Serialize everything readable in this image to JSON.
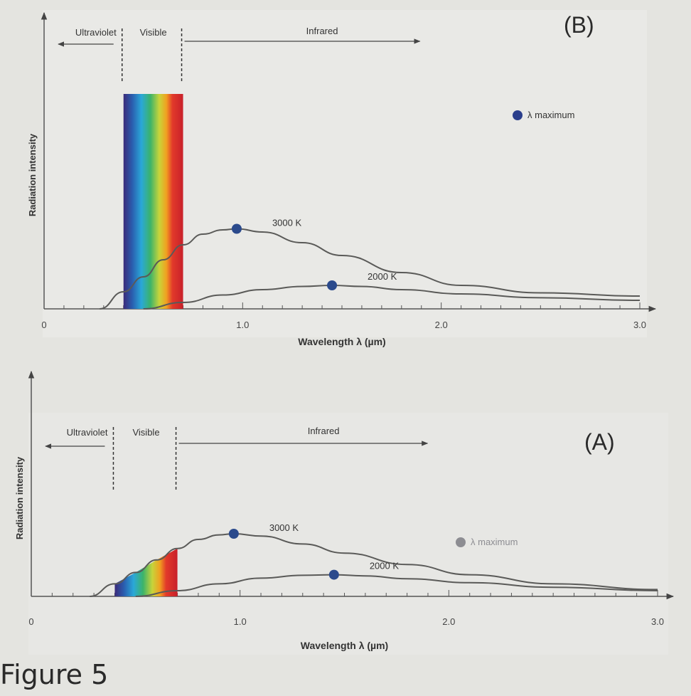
{
  "caption": "Figure 5",
  "chart_data": [
    {
      "type": "line",
      "panel_label": "(B)",
      "xlabel": "Wavelength λ (µm)",
      "ylabel": "Radiation intensity",
      "xlim": [
        0,
        3.0
      ],
      "ylim": [
        0,
        1.0
      ],
      "x_ticks": [
        {
          "value": 0,
          "label": "0"
        },
        {
          "value": 1.0,
          "label": "1.0"
        },
        {
          "value": 2.0,
          "label": "2.0"
        },
        {
          "value": 3.0,
          "label": "3.0"
        }
      ],
      "regions": [
        {
          "name": "Ultraviolet",
          "from": 0,
          "to": 0.4
        },
        {
          "name": "Visible",
          "from": 0.4,
          "to": 0.7
        },
        {
          "name": "Infrared",
          "from": 0.7,
          "to": 3.0
        }
      ],
      "visible_band": {
        "from": 0.4,
        "to": 0.7,
        "style": "full-height bar"
      },
      "legend": {
        "label": "λ maximum",
        "marker_color": "#2b3f8c"
      },
      "series": [
        {
          "name": "3000 K",
          "x": [
            0.28,
            0.4,
            0.5,
            0.6,
            0.7,
            0.8,
            0.9,
            0.97,
            1.1,
            1.3,
            1.5,
            1.8,
            2.1,
            2.5,
            3.0
          ],
          "y": [
            0.0,
            0.08,
            0.15,
            0.23,
            0.3,
            0.35,
            0.37,
            0.375,
            0.36,
            0.31,
            0.25,
            0.17,
            0.11,
            0.075,
            0.06
          ],
          "peak": {
            "x": 0.97,
            "y": 0.375
          }
        },
        {
          "name": "2000 K",
          "x": [
            0.5,
            0.7,
            0.9,
            1.1,
            1.3,
            1.45,
            1.6,
            1.8,
            2.1,
            2.5,
            3.0
          ],
          "y": [
            0.0,
            0.03,
            0.065,
            0.09,
            0.105,
            0.11,
            0.105,
            0.09,
            0.07,
            0.052,
            0.04
          ],
          "peak": {
            "x": 1.45,
            "y": 0.11
          }
        }
      ]
    },
    {
      "type": "line",
      "panel_label": "(A)",
      "xlabel": "Wavelength λ (µm)",
      "ylabel": "Radiation intensity",
      "xlim": [
        0,
        3.0
      ],
      "ylim": [
        0,
        1.0
      ],
      "x_ticks": [
        {
          "value": 0,
          "label": "0"
        },
        {
          "value": 1.0,
          "label": "1.0"
        },
        {
          "value": 2.0,
          "label": "2.0"
        },
        {
          "value": 3.0,
          "label": "3.0"
        }
      ],
      "regions": [
        {
          "name": "Ultraviolet",
          "from": 0,
          "to": 0.4
        },
        {
          "name": "Visible",
          "from": 0.4,
          "to": 0.7
        },
        {
          "name": "Infrared",
          "from": 0.7,
          "to": 3.0
        }
      ],
      "visible_band": {
        "from": 0.4,
        "to": 0.7,
        "style": "under 3000 K curve"
      },
      "legend": {
        "label": "λ maximum",
        "marker_color": "#8d8d92"
      },
      "series": [
        {
          "name": "3000 K",
          "x": [
            0.28,
            0.4,
            0.5,
            0.6,
            0.7,
            0.8,
            0.9,
            0.97,
            1.1,
            1.3,
            1.5,
            1.8,
            2.1,
            2.5,
            3.0
          ],
          "y": [
            0.0,
            0.11,
            0.21,
            0.32,
            0.42,
            0.5,
            0.54,
            0.55,
            0.53,
            0.46,
            0.38,
            0.28,
            0.19,
            0.11,
            0.06
          ],
          "peak": {
            "x": 0.97,
            "y": 0.55
          }
        },
        {
          "name": "2000 K",
          "x": [
            0.5,
            0.7,
            0.9,
            1.1,
            1.3,
            1.45,
            1.6,
            1.8,
            2.1,
            2.5,
            3.0
          ],
          "y": [
            0.0,
            0.05,
            0.11,
            0.16,
            0.185,
            0.19,
            0.18,
            0.155,
            0.12,
            0.08,
            0.05
          ],
          "peak": {
            "x": 1.45,
            "y": 0.19
          }
        }
      ]
    }
  ]
}
